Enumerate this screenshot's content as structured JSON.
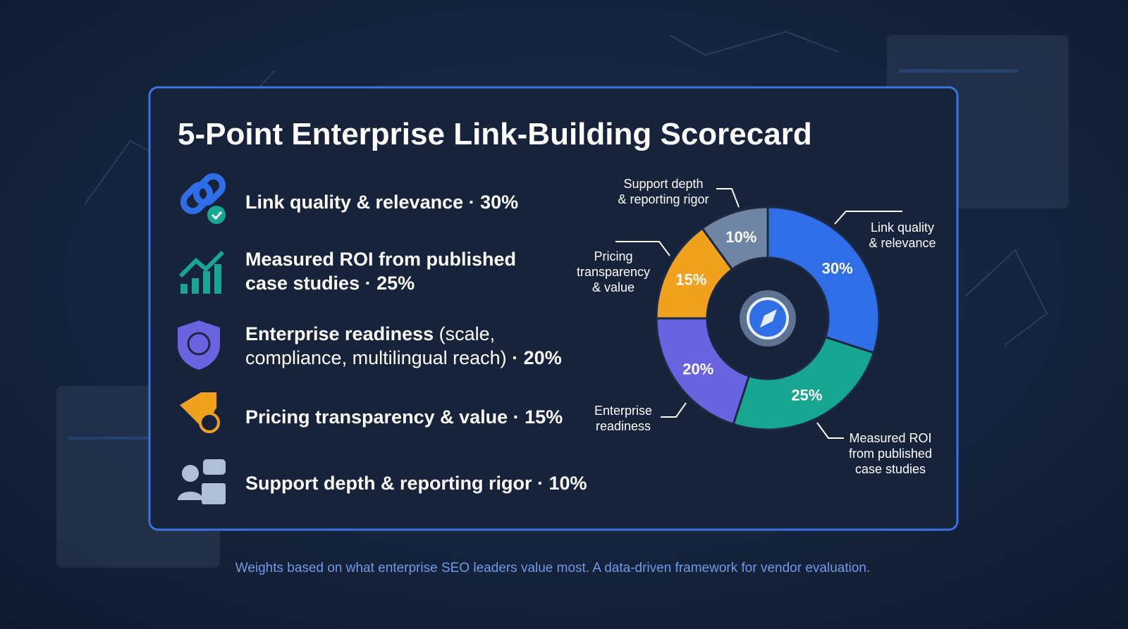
{
  "chart_data": {
    "type": "donut",
    "title": "5-Point Enterprise Link-Building Scorecard",
    "categories": [
      [
        "Link quality",
        "& relevance"
      ],
      [
        "Measured ROI",
        "from published",
        "case studies"
      ],
      [
        "Enterprise",
        "readiness"
      ],
      [
        "Pricing",
        "transparency",
        "& value"
      ],
      [
        "Support depth",
        "& reporting rigor"
      ]
    ],
    "values": [
      30,
      25,
      20,
      15,
      10
    ],
    "value_labels": [
      "30%",
      "25%",
      "20%",
      "15%",
      "10%"
    ],
    "colors": [
      "#2f6ee6",
      "#17a68f",
      "#6a63df",
      "#f0a21e",
      "#6f85a3"
    ]
  },
  "list": [
    [
      [
        {
          "text": "Link quality & relevance · 30%",
          "bold": true
        }
      ]
    ],
    [
      [
        {
          "text": "Measured ROI from published",
          "bold": true
        }
      ],
      [
        {
          "text": "case studies · 25%",
          "bold": true
        }
      ]
    ],
    [
      [
        {
          "text": "Enterprise readiness",
          "bold": true
        },
        {
          "text": " (scale,",
          "bold": false
        }
      ],
      [
        {
          "text": "compliance, multilingual reach)",
          "bold": false
        },
        {
          "text": " · 20%",
          "bold": true
        }
      ]
    ],
    [
      [
        {
          "text": "Pricing transparency & value · 15%",
          "bold": true
        }
      ]
    ],
    [
      [
        {
          "text": "Support depth & reporting rigor · 10%",
          "bold": true
        }
      ]
    ]
  ],
  "footer": "Weights based on what enterprise SEO leaders value most. A data-driven framework for vendor evaluation."
}
